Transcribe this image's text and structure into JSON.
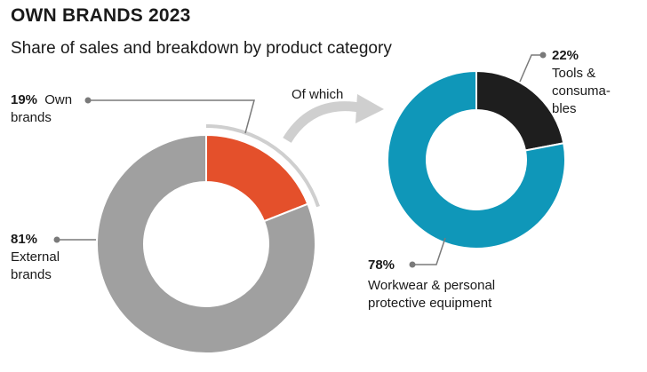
{
  "header": {
    "title": "OWN BRANDS 2023",
    "subtitle": "Share of sales and breakdown by product category"
  },
  "connector_label": "Of which",
  "colors": {
    "own_brands": "#E4502B",
    "external_brands": "#A0A0A0",
    "tools": "#1E1E1E",
    "workwear": "#0F97B9",
    "guide": "#7A7A7A",
    "bracket": "#CFCFCF"
  },
  "chart_data": [
    {
      "type": "pie",
      "title": "",
      "slices": [
        {
          "pct": "19%",
          "value": 19,
          "label_lines": [
            "Own",
            "brands"
          ],
          "color": "#E4502B"
        },
        {
          "pct": "81%",
          "value": 81,
          "label_lines": [
            "External",
            "brands"
          ],
          "color": "#A0A0A0"
        }
      ]
    },
    {
      "type": "pie",
      "title": "",
      "slices": [
        {
          "pct": "22%",
          "value": 22,
          "label_lines": [
            "Tools &",
            "consuma-",
            "bles"
          ],
          "color": "#1E1E1E"
        },
        {
          "pct": "78%",
          "value": 78,
          "label_lines": [
            "Workwear & personal",
            "protective equipment"
          ],
          "color": "#0F97B9"
        }
      ]
    }
  ]
}
